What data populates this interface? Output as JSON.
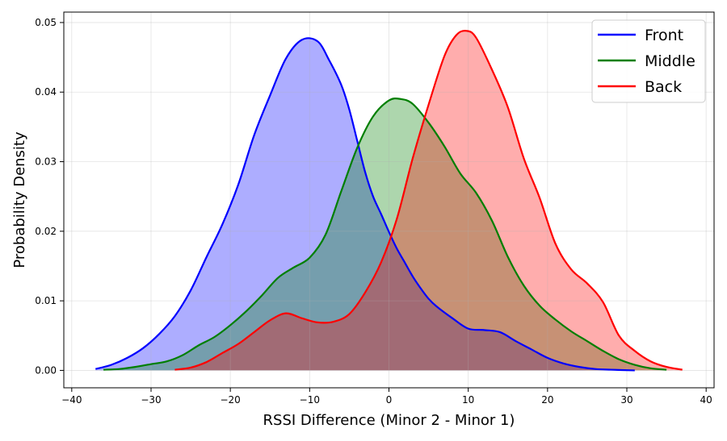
{
  "chart_data": {
    "type": "area",
    "title": "",
    "xlabel": "RSSI Difference (Minor 2 - Minor 1)",
    "ylabel": "Probability Density",
    "xlim": [
      -41,
      41
    ],
    "ylim": [
      -0.0025,
      0.0515
    ],
    "xticks": [
      -40,
      -30,
      -20,
      -10,
      0,
      10,
      20,
      30,
      40
    ],
    "xtick_labels": [
      "−40",
      "−30",
      "−20",
      "−10",
      "0",
      "10",
      "20",
      "30",
      "40"
    ],
    "yticks": [
      0.0,
      0.01,
      0.02,
      0.03,
      0.04,
      0.05
    ],
    "ytick_labels": [
      "0.00",
      "0.01",
      "0.02",
      "0.03",
      "0.04",
      "0.05"
    ],
    "grid": true,
    "legend_position": "top-right",
    "series": [
      {
        "name": "Front",
        "color": "#0000ff",
        "fill": "#aab0ff",
        "x": [
          -37,
          -35,
          -33,
          -31,
          -29,
          -27,
          -25,
          -23,
          -21,
          -19,
          -17,
          -15,
          -13,
          -11,
          -9,
          -7.5,
          -6,
          -5,
          -4,
          -3,
          -2,
          -1,
          0,
          1,
          2,
          3,
          4,
          5,
          6,
          8,
          10,
          12,
          14,
          16,
          18,
          20,
          22,
          24,
          26,
          28,
          31
        ],
        "y": [
          0.0002,
          0.0008,
          0.0018,
          0.0032,
          0.0052,
          0.0078,
          0.0115,
          0.0163,
          0.021,
          0.0267,
          0.0338,
          0.0395,
          0.0448,
          0.0475,
          0.0473,
          0.0445,
          0.041,
          0.0375,
          0.033,
          0.0285,
          0.025,
          0.0225,
          0.0199,
          0.0175,
          0.0155,
          0.0135,
          0.0118,
          0.0103,
          0.0092,
          0.0075,
          0.006,
          0.0058,
          0.0055,
          0.0042,
          0.003,
          0.0018,
          0.001,
          0.0005,
          0.0002,
          0.0001,
          0.0
        ]
      },
      {
        "name": "Middle",
        "color": "#007f00",
        "fill": "#b5deb5",
        "x": [
          -36,
          -34,
          -32,
          -30,
          -28,
          -26,
          -24,
          -22,
          -20,
          -18,
          -16,
          -14,
          -12,
          -10,
          -8,
          -6,
          -4,
          -2,
          0,
          1.5,
          3,
          5,
          7,
          9,
          11,
          13,
          15,
          17,
          19,
          21,
          23,
          25,
          27,
          29,
          31,
          33,
          35
        ],
        "y": [
          0.0001,
          0.0002,
          0.0005,
          0.0009,
          0.0013,
          0.0022,
          0.0036,
          0.0048,
          0.0065,
          0.0085,
          0.0108,
          0.0133,
          0.0148,
          0.0162,
          0.0195,
          0.0258,
          0.032,
          0.0365,
          0.0388,
          0.039,
          0.0383,
          0.0356,
          0.0322,
          0.0283,
          0.0255,
          0.0215,
          0.0163,
          0.0122,
          0.0093,
          0.0073,
          0.0056,
          0.0042,
          0.0028,
          0.0016,
          0.0008,
          0.0003,
          0.0001
        ]
      },
      {
        "name": "Back",
        "color": "#ff0000",
        "fill": "#ffaaaa",
        "x": [
          -27,
          -25,
          -23,
          -21,
          -19,
          -17,
          -15,
          -13,
          -11,
          -9,
          -7,
          -5,
          -3,
          -1,
          1,
          3,
          5,
          7,
          8.5,
          9.8,
          11,
          13,
          15,
          17,
          19,
          21,
          23,
          25,
          27,
          29,
          31,
          33,
          35,
          37
        ],
        "y": [
          0.0001,
          0.0004,
          0.0012,
          0.0025,
          0.0038,
          0.0055,
          0.0072,
          0.0082,
          0.0075,
          0.0069,
          0.007,
          0.0081,
          0.0112,
          0.0155,
          0.0218,
          0.0305,
          0.0382,
          0.0452,
          0.0482,
          0.0488,
          0.0478,
          0.0432,
          0.0378,
          0.0305,
          0.0248,
          0.0182,
          0.0145,
          0.0125,
          0.0098,
          0.005,
          0.0028,
          0.0013,
          0.0005,
          0.0001
        ]
      }
    ]
  }
}
